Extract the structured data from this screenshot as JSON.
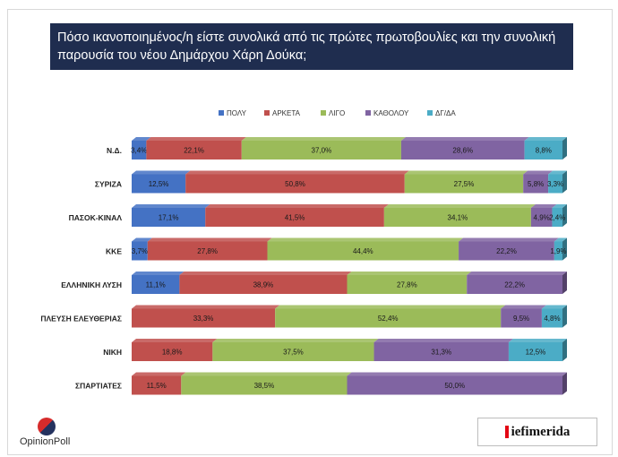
{
  "title": "Πόσο ικανοποιημένος/η είστε συνολικά από τις πρώτες πρωτοβουλίες και την συνολική παρουσία του νέου Δημάρχου Χάρη Δούκα;",
  "logos": {
    "left": "OpinionPoll",
    "right": "iefimerida"
  },
  "colors": {
    "title_bg": "#1f2d4f",
    "series": [
      "#4472c4",
      "#c0504d",
      "#9bbb59",
      "#8064a2",
      "#4bacc6"
    ]
  },
  "chart_data": {
    "type": "bar",
    "orientation": "horizontal",
    "stacked": true,
    "percent": true,
    "title": "Πόσο ικανοποιημένος/η είστε συνολικά από τις πρώτες πρωτοβουλίες και την συνολική παρουσία του νέου Δημάρχου Χάρη Δούκα;",
    "categories": [
      "Ν.Δ.",
      "ΣΥΡΙΖΑ",
      "ΠΑΣΟΚ-ΚΙΝΑΛ",
      "ΚΚΕ",
      "ΕΛΛΗΝΙΚΗ ΛΥΣΗ",
      "ΠΛΕΥΣΗ ΕΛΕΥΘΕΡΙΑΣ",
      "ΝΙΚΗ",
      "ΣΠΑΡΤΙΑΤΕΣ"
    ],
    "series": [
      {
        "name": "ΠΟΛΥ",
        "values": [
          3.4,
          12.5,
          17.1,
          3.7,
          11.1,
          0,
          0,
          0
        ],
        "labels": [
          "3,4%",
          "12,5%",
          "17,1%",
          "3,7%",
          "11,1%",
          "",
          "",
          ""
        ]
      },
      {
        "name": "ΑΡΚΕΤΑ",
        "values": [
          22.1,
          50.8,
          41.5,
          27.8,
          38.9,
          33.3,
          18.8,
          11.5
        ],
        "labels": [
          "22,1%",
          "50,8%",
          "41,5%",
          "27,8%",
          "38,9%",
          "33,3%",
          "18,8%",
          "11,5%"
        ]
      },
      {
        "name": "ΛΙΓΟ",
        "values": [
          37.0,
          27.5,
          34.1,
          44.4,
          27.8,
          52.4,
          37.5,
          38.5
        ],
        "labels": [
          "37,0%",
          "27,5%",
          "34,1%",
          "44,4%",
          "27,8%",
          "52,4%",
          "37,5%",
          "38,5%"
        ]
      },
      {
        "name": "ΚΑΘΟΛΟΥ",
        "values": [
          28.6,
          5.8,
          4.9,
          22.2,
          22.2,
          9.5,
          31.3,
          50.0
        ],
        "labels": [
          "28,6%",
          "5,8%",
          "4,9%",
          "22,2%",
          "22,2%",
          "9,5%",
          "31,3%",
          "50,0%"
        ]
      },
      {
        "name": "ΔΓ/ΔΑ",
        "values": [
          8.8,
          3.3,
          2.4,
          1.9,
          0,
          4.8,
          12.5,
          0
        ],
        "labels": [
          "8,8%",
          "3,3%",
          "2,4%",
          "1,9%",
          "",
          "4,8%",
          "12,5%",
          ""
        ]
      }
    ],
    "xlim": [
      0,
      100
    ],
    "legend_position": "top-center",
    "grid": false
  }
}
